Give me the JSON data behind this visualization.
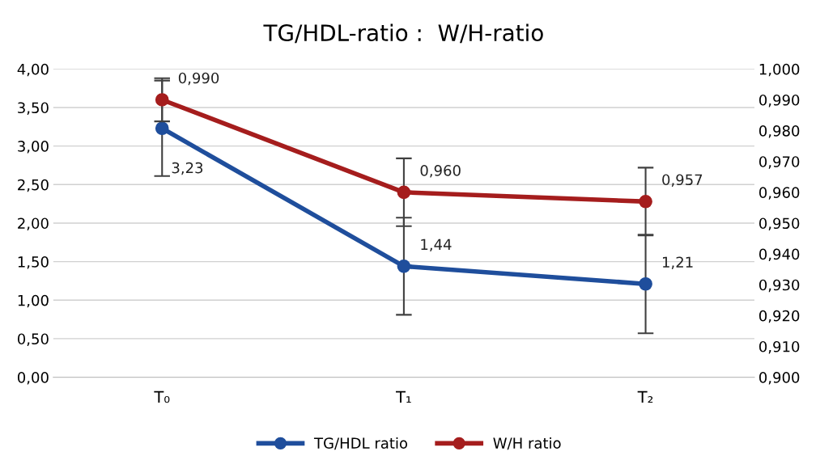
{
  "chart_data": {
    "type": "line",
    "title": "TG/HDL-ratio :  W/H-ratio",
    "categories": [
      "T₀",
      "T₁",
      "T₂"
    ],
    "series": [
      {
        "name": "TG/HDL ratio",
        "color": "#1f4e9c",
        "values": [
          3.23,
          1.44,
          1.21
        ],
        "errors": [
          0.62,
          0.63,
          0.64
        ],
        "value_labels": [
          "3,23",
          "1,44",
          "1,21"
        ]
      },
      {
        "name": "W/H ratio",
        "color": "#a51d1d",
        "axis": "y2",
        "values": [
          0.99,
          0.96,
          0.957
        ],
        "errors": [
          0.007,
          0.011,
          0.011
        ],
        "value_labels": [
          "0,990",
          "0,960",
          "0,957"
        ]
      }
    ],
    "ylim": [
      0,
      4
    ],
    "yticks": [
      {
        "value": 0,
        "label": "0,00"
      },
      {
        "value": 0.5,
        "label": "0,50"
      },
      {
        "value": 1,
        "label": "1,00"
      },
      {
        "value": 1.5,
        "label": "1,50"
      },
      {
        "value": 2,
        "label": "2,00"
      },
      {
        "value": 2.5,
        "label": "2,50"
      },
      {
        "value": 3,
        "label": "3,00"
      },
      {
        "value": 3.5,
        "label": "3,50"
      },
      {
        "value": 4,
        "label": "4,00"
      }
    ],
    "y2lim": [
      0.9,
      1.0
    ],
    "y2ticks": [
      {
        "value": 0.9,
        "label": "0,900"
      },
      {
        "value": 0.91,
        "label": "0,910"
      },
      {
        "value": 0.92,
        "label": "0,920"
      },
      {
        "value": 0.93,
        "label": "0,930"
      },
      {
        "value": 0.94,
        "label": "0,940"
      },
      {
        "value": 0.95,
        "label": "0,950"
      },
      {
        "value": 0.96,
        "label": "0,960"
      },
      {
        "value": 0.97,
        "label": "0,970"
      },
      {
        "value": 0.98,
        "label": "0,980"
      },
      {
        "value": 0.99,
        "label": "0,990"
      },
      {
        "value": 1.0,
        "label": "1,000"
      }
    ],
    "grid": "y",
    "legend": "bottom",
    "marker": "circle",
    "line_style": "solid"
  }
}
